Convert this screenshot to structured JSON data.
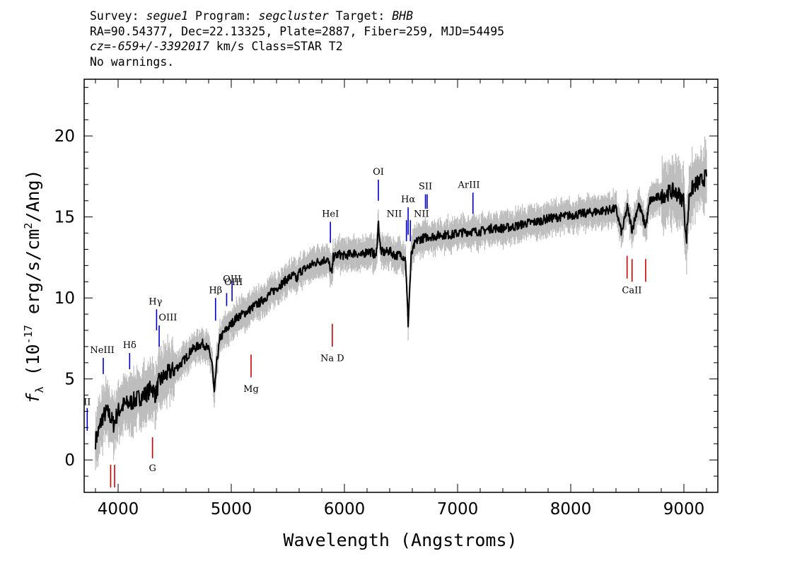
{
  "header": {
    "survey_label": "Survey:",
    "survey_value": "segue1",
    "program_label": "Program:",
    "program_value": "segcluster",
    "target_label": "Target:",
    "target_value": "BHB",
    "line2": "RA=90.54377, Dec=22.13325, Plate=2887, Fiber=259, MJD=54495",
    "cz_value": "cz=-659+/-3392017",
    "cz_units": "km/s Class=STAR T2",
    "warnings": "No warnings."
  },
  "chart_data": {
    "type": "line",
    "xlabel": "Wavelength (Angstroms)",
    "ylabel": "f_λ (10^-17 erg/s/cm^2/Ang)",
    "xlim": [
      3700,
      9300
    ],
    "ylim": [
      -2,
      23.5
    ],
    "x_ticks": [
      4000,
      5000,
      6000,
      7000,
      8000,
      9000
    ],
    "x_tick_labels": [
      "4000",
      "5000",
      "6000",
      "7000",
      "8000",
      "9000"
    ],
    "y_ticks": [
      0,
      5,
      10,
      15,
      20
    ],
    "y_tick_labels": [
      "0",
      "5",
      "10",
      "15",
      "20"
    ],
    "grid": false,
    "series": [
      {
        "color": "#000000",
        "style": "spectrum",
        "x": [
          3800,
          3830,
          3860,
          3900,
          3930,
          3960,
          4000,
          4050,
          4100,
          4150,
          4200,
          4250,
          4300,
          4330,
          4360,
          4400,
          4450,
          4500,
          4550,
          4600,
          4650,
          4700,
          4750,
          4800,
          4830,
          4850,
          4870,
          4900,
          4950,
          5000,
          5050,
          5100,
          5150,
          5200,
          5250,
          5300,
          5350,
          5400,
          5450,
          5500,
          5550,
          5580,
          5600,
          5650,
          5700,
          5750,
          5800,
          5850,
          5890,
          5900,
          5950,
          6000,
          6050,
          6100,
          6150,
          6200,
          6250,
          6280,
          6300,
          6320,
          6350,
          6400,
          6450,
          6500,
          6540,
          6563,
          6590,
          6620,
          6650,
          6700,
          6750,
          6800,
          6850,
          6900,
          6950,
          7000,
          7100,
          7200,
          7300,
          7400,
          7500,
          7600,
          7700,
          7800,
          7900,
          8000,
          8100,
          8200,
          8300,
          8400,
          8450,
          8500,
          8542,
          8600,
          8662,
          8700,
          8800,
          8900,
          8950,
          9000,
          9020,
          9050,
          9100,
          9150,
          9200
        ],
        "y": [
          1.2,
          1.8,
          2.6,
          3.0,
          2.7,
          2.2,
          3.0,
          3.4,
          3.5,
          3.7,
          3.9,
          4.1,
          4.5,
          4.0,
          4.8,
          5.1,
          5.4,
          5.6,
          5.9,
          6.3,
          6.8,
          7.0,
          7.2,
          6.8,
          6.0,
          4.0,
          5.9,
          7.5,
          8.0,
          8.4,
          8.8,
          9.0,
          9.2,
          9.5,
          9.7,
          10.0,
          10.3,
          10.6,
          10.9,
          11.2,
          11.4,
          11.1,
          11.6,
          11.8,
          12.0,
          12.2,
          12.3,
          12.4,
          11.5,
          12.5,
          12.7,
          12.6,
          12.7,
          12.8,
          12.6,
          12.9,
          12.8,
          12.5,
          14.6,
          12.9,
          12.8,
          12.9,
          12.6,
          12.7,
          12.4,
          8.4,
          12.6,
          13.3,
          13.6,
          13.7,
          13.8,
          13.8,
          13.9,
          13.9,
          13.9,
          14.0,
          14.1,
          14.1,
          14.3,
          14.3,
          14.4,
          14.6,
          14.7,
          14.9,
          15.0,
          15.1,
          15.2,
          15.3,
          15.4,
          15.5,
          14.0,
          15.6,
          14.2,
          15.8,
          14.4,
          16.0,
          16.3,
          16.6,
          16.4,
          16.0,
          13.4,
          16.5,
          17.0,
          17.2,
          17.5
        ]
      }
    ],
    "lines": [
      {
        "name": "II",
        "wl": 3727,
        "color": "blue",
        "y0": 1.8,
        "y1": 3.2,
        "lx": 3727,
        "ly": 3.4
      },
      {
        "name": "NeIII",
        "wl": 3869,
        "color": "blue",
        "y0": 5.3,
        "y1": 6.3,
        "lx": 3860,
        "ly": 6.6
      },
      {
        "name": "Hδ",
        "wl": 4102,
        "color": "blue",
        "y0": 5.6,
        "y1": 6.6,
        "lx": 4102,
        "ly": 6.9
      },
      {
        "name": "Hγ",
        "wl": 4340,
        "color": "blue",
        "y0": 8.0,
        "y1": 9.3,
        "lx": 4330,
        "ly": 9.6
      },
      {
        "name": "OIII",
        "wl": 4363,
        "color": "blue",
        "y0": 7.0,
        "y1": 8.3,
        "lx": 4440,
        "ly": 8.6
      },
      {
        "name": "Hβ",
        "wl": 4861,
        "color": "blue",
        "y0": 8.6,
        "y1": 10.0,
        "lx": 4861,
        "ly": 10.3
      },
      {
        "name": "OIII",
        "wl": 4959,
        "color": "blue",
        "y0": 9.5,
        "y1": 10.3,
        "lx": 5020,
        "ly": 10.8
      },
      {
        "name": "OIII",
        "wl": 5007,
        "color": "blue",
        "y0": 9.8,
        "y1": 11.0,
        "lx": 5007,
        "ly": 11.0
      },
      {
        "name": "HeI",
        "wl": 5876,
        "color": "blue",
        "y0": 13.4,
        "y1": 14.7,
        "lx": 5876,
        "ly": 15.0
      },
      {
        "name": "OI",
        "wl": 6300,
        "color": "blue",
        "y0": 16.0,
        "y1": 17.3,
        "lx": 6300,
        "ly": 17.6
      },
      {
        "name": "NII",
        "wl": 6548,
        "color": "blue",
        "y0": 13.5,
        "y1": 14.8,
        "lx": 6440,
        "ly": 15.0
      },
      {
        "name": "Hα",
        "wl": 6563,
        "color": "blue",
        "y0": 13.9,
        "y1": 15.6,
        "lx": 6563,
        "ly": 15.9
      },
      {
        "name": "NII",
        "wl": 6583,
        "color": "blue",
        "y0": 13.5,
        "y1": 14.8,
        "lx": 6680,
        "ly": 15.0
      },
      {
        "name": "SII",
        "wl": 6716,
        "color": "blue",
        "y0": 15.5,
        "y1": 16.4,
        "lx": 6716,
        "ly": 16.7
      },
      {
        "name": "SII",
        "wl": 6731,
        "color": "blue",
        "y0": 15.5,
        "y1": 16.4,
        "lx": null,
        "ly": null
      },
      {
        "name": "ArIII",
        "wl": 7136,
        "color": "blue",
        "y0": 15.2,
        "y1": 16.5,
        "lx": 7100,
        "ly": 16.8
      },
      {
        "name": "G",
        "wl": 4304,
        "color": "red",
        "y0": 1.4,
        "y1": 0.1,
        "lx": 4304,
        "ly": -0.7
      },
      {
        "name": "",
        "wl": 3934,
        "color": "red",
        "y0": -0.3,
        "y1": -1.7,
        "lx": null,
        "ly": null
      },
      {
        "name": "",
        "wl": 3969,
        "color": "red",
        "y0": -0.3,
        "y1": -1.7,
        "lx": null,
        "ly": null
      },
      {
        "name": "Mg",
        "wl": 5175,
        "color": "red",
        "y0": 6.5,
        "y1": 5.1,
        "lx": 5175,
        "ly": 4.2
      },
      {
        "name": "Na D",
        "wl": 5893,
        "color": "red",
        "y0": 8.4,
        "y1": 7.0,
        "lx": 5893,
        "ly": 6.1
      },
      {
        "name": "CaII",
        "wl": 8498,
        "color": "red",
        "y0": 12.6,
        "y1": 11.2,
        "lx": 8540,
        "ly": 10.3
      },
      {
        "name": "",
        "wl": 8542,
        "color": "red",
        "y0": 12.4,
        "y1": 11.0,
        "lx": null,
        "ly": null
      },
      {
        "name": "",
        "wl": 8662,
        "color": "red",
        "y0": 12.4,
        "y1": 11.0,
        "lx": null,
        "ly": null
      }
    ]
  }
}
